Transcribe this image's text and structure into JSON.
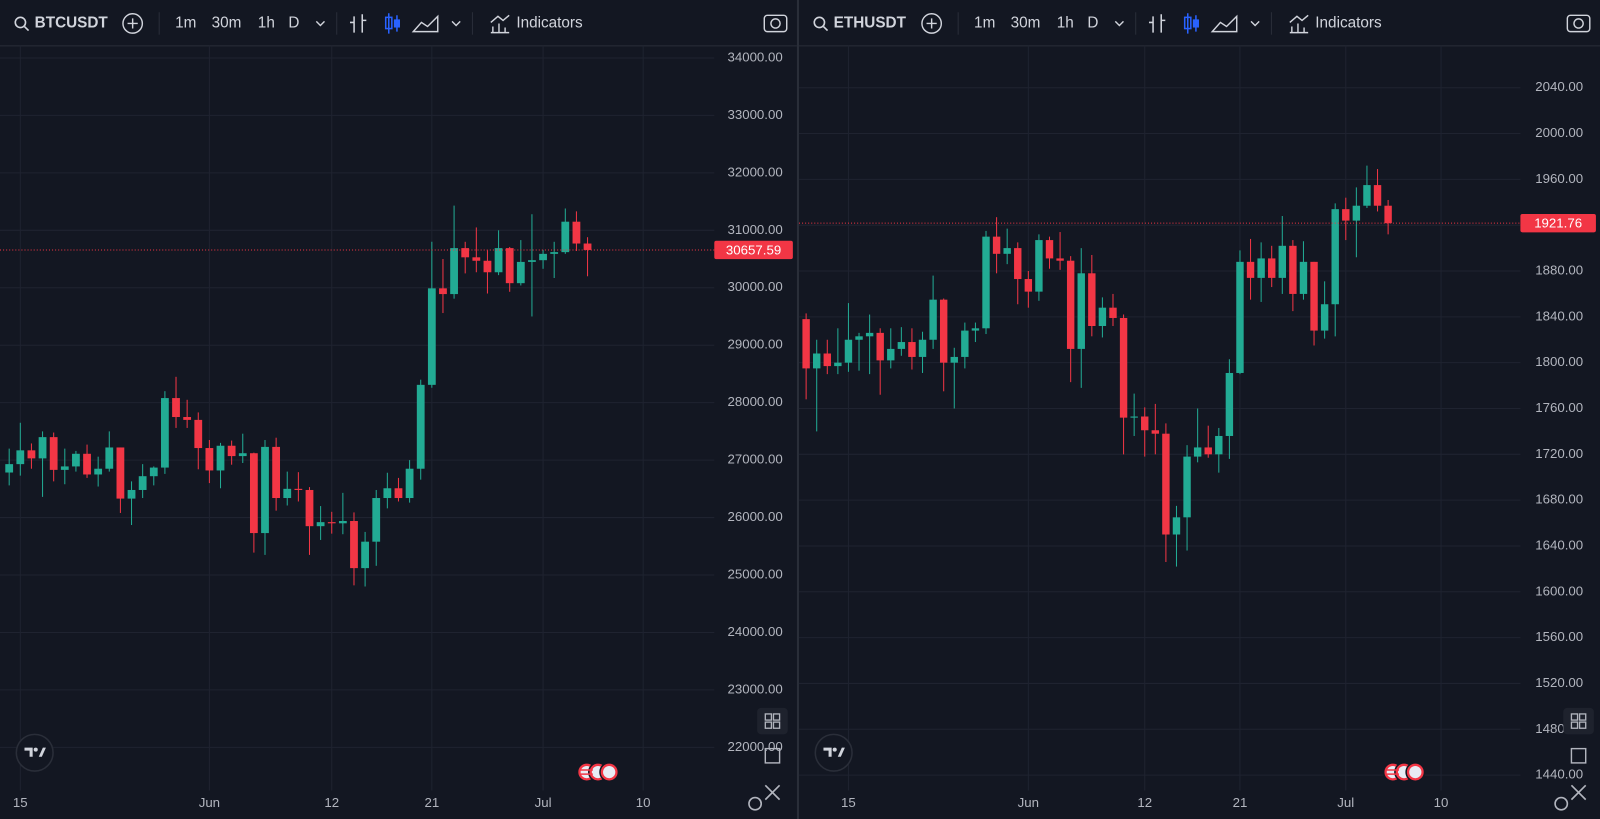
{
  "toolbar": {
    "intervals": [
      "1m",
      "30m",
      "1h",
      "D"
    ],
    "indicators": "Indicators"
  },
  "chart_data": [
    {
      "type": "candlestick",
      "title": "BTCUSDT",
      "up_color": "#22ab94",
      "down_color": "#f23645",
      "categories": [
        null,
        "15",
        null,
        null,
        null,
        null,
        null,
        null,
        null,
        null,
        null,
        null,
        null,
        null,
        null,
        null,
        null,
        null,
        "Jun",
        null,
        null,
        null,
        null,
        null,
        null,
        null,
        null,
        null,
        null,
        "12",
        null,
        null,
        null,
        null,
        null,
        null,
        null,
        null,
        "21",
        null,
        null,
        null,
        null,
        null,
        null,
        null,
        null,
        null,
        "Jul",
        null,
        null,
        null,
        null,
        null,
        null,
        null,
        null,
        "10"
      ],
      "open": [
        26784,
        26930,
        27170,
        27030,
        27400,
        26830,
        26890,
        27110,
        26750,
        26850,
        27220,
        26330,
        26480,
        26720,
        26870,
        28080,
        27750,
        27700,
        27210,
        26820,
        27250,
        27070,
        27120,
        25730,
        27230,
        26340,
        26500,
        26480,
        25850,
        25920,
        25900,
        25940,
        25120,
        25580,
        26340,
        26510,
        26340,
        26850,
        28310,
        29990,
        29890,
        30690,
        30530,
        30470,
        30270,
        30690,
        30080,
        30450,
        30480,
        30590,
        30620,
        31150,
        30770,
        null,
        null,
        null,
        null,
        null
      ],
      "high": [
        27200,
        27650,
        27290,
        27500,
        27480,
        27200,
        27160,
        27270,
        27060,
        27500,
        27220,
        26630,
        26930,
        26890,
        28200,
        28450,
        28050,
        27830,
        27350,
        27300,
        27340,
        27460,
        27130,
        27350,
        27390,
        26800,
        26790,
        26530,
        26200,
        26100,
        26430,
        26090,
        25750,
        26480,
        26780,
        26690,
        27000,
        28400,
        30800,
        30500,
        31430,
        30800,
        31050,
        30650,
        31000,
        30710,
        30830,
        31280,
        30660,
        30800,
        31380,
        31330,
        30880,
        null,
        null,
        null,
        null,
        null
      ],
      "low": [
        26560,
        26730,
        26850,
        26360,
        26630,
        26580,
        26800,
        26690,
        26540,
        26800,
        26080,
        25870,
        26340,
        26560,
        26760,
        27560,
        27560,
        26840,
        26600,
        26510,
        26920,
        26950,
        25390,
        25350,
        26120,
        26210,
        26280,
        25350,
        25610,
        25720,
        25710,
        24820,
        24800,
        25160,
        26160,
        26280,
        26260,
        26660,
        28260,
        29560,
        29810,
        30250,
        30270,
        29900,
        30220,
        29930,
        30040,
        29500,
        30330,
        30170,
        30590,
        30640,
        30200,
        null,
        null,
        null,
        null,
        null
      ],
      "close": [
        26930,
        27170,
        27030,
        27400,
        26830,
        26890,
        27110,
        26750,
        26850,
        27220,
        26330,
        26480,
        26720,
        26870,
        28080,
        27750,
        27700,
        27210,
        26820,
        27250,
        27070,
        27120,
        25730,
        27230,
        26340,
        26500,
        26480,
        25850,
        25920,
        25900,
        25940,
        25120,
        25580,
        26340,
        26510,
        26340,
        26850,
        28310,
        29990,
        29890,
        30690,
        30530,
        30470,
        30270,
        30690,
        30080,
        30450,
        30480,
        30590,
        30620,
        31150,
        30770,
        30657.59,
        null,
        null,
        null,
        null,
        null
      ],
      "last_price": 30657.59,
      "ylim": [
        21250,
        34210
      ],
      "yticks": [
        {
          "value": 22000,
          "label": "22000.00"
        },
        {
          "value": 23000,
          "label": "23000.00"
        },
        {
          "value": 24000,
          "label": "24000.00"
        },
        {
          "value": 25000,
          "label": "25000.00"
        },
        {
          "value": 26000,
          "label": "26000.00"
        },
        {
          "value": 27000,
          "label": "27000.00"
        },
        {
          "value": 28000,
          "label": "28000.00"
        },
        {
          "value": 29000,
          "label": "29000.00"
        },
        {
          "value": 30000,
          "label": "30000.00"
        },
        {
          "value": 31000,
          "label": "31000.00"
        },
        {
          "value": 32000,
          "label": "32000.00"
        },
        {
          "value": 33000,
          "label": "33000.00"
        },
        {
          "value": 34000,
          "label": "34000.00"
        }
      ],
      "grid": true
    },
    {
      "type": "candlestick",
      "title": "ETHUSDT",
      "up_color": "#22ab94",
      "down_color": "#f23645",
      "categories": [
        null,
        null,
        null,
        null,
        "15",
        null,
        null,
        null,
        null,
        null,
        null,
        null,
        null,
        null,
        null,
        null,
        null,
        null,
        null,
        null,
        null,
        "Jun",
        null,
        null,
        null,
        null,
        null,
        null,
        null,
        null,
        null,
        null,
        "12",
        null,
        null,
        null,
        null,
        null,
        null,
        null,
        null,
        "21",
        null,
        null,
        null,
        null,
        null,
        null,
        null,
        null,
        null,
        "Jul",
        null,
        null,
        null,
        null,
        null,
        null,
        null,
        null,
        "10"
      ],
      "open": [
        1838,
        1795,
        1808,
        1797,
        1800,
        1820,
        1823,
        1826,
        1802,
        1812,
        1818,
        1805,
        1820,
        1855,
        1800,
        1805,
        1828,
        1830,
        1910,
        1895,
        1900,
        1873,
        1862,
        1907,
        1891,
        1889,
        1812,
        1878,
        1832,
        1848,
        1839,
        1752,
        1753,
        1741,
        1738,
        1650,
        1665,
        1718,
        1726,
        1720,
        1736,
        1791,
        1888,
        1874,
        1891,
        1874,
        1902,
        1860,
        1888,
        1828,
        1851,
        1934,
        1924,
        1937,
        1955,
        1937,
        null,
        null,
        null,
        null,
        null
      ],
      "high": [
        1843,
        1820,
        1820,
        1830,
        1852,
        1826,
        1842,
        1830,
        1830,
        1831,
        1830,
        1827,
        1876,
        1856,
        1813,
        1835,
        1835,
        1915,
        1927,
        1917,
        1905,
        1880,
        1912,
        1910,
        1914,
        1893,
        1900,
        1894,
        1857,
        1860,
        1842,
        1773,
        1761,
        1764,
        1747,
        1675,
        1728,
        1760,
        1745,
        1743,
        1803,
        1898,
        1908,
        1905,
        1902,
        1928,
        1907,
        1906,
        1888,
        1871,
        1939,
        1944,
        1953,
        1972,
        1969,
        1942,
        null,
        null,
        null,
        null,
        null
      ],
      "low": [
        1768,
        1740,
        1790,
        1790,
        1792,
        1793,
        1790,
        1772,
        1795,
        1806,
        1794,
        1791,
        1812,
        1775,
        1760,
        1795,
        1818,
        1825,
        1878,
        1886,
        1851,
        1848,
        1854,
        1882,
        1881,
        1783,
        1778,
        1823,
        1822,
        1832,
        1720,
        1736,
        1718,
        1720,
        1626,
        1622,
        1636,
        1713,
        1717,
        1704,
        1716,
        1790,
        1855,
        1853,
        1866,
        1860,
        1845,
        1855,
        1815,
        1821,
        1823,
        1907,
        1892,
        1935,
        1932,
        1912,
        null,
        null,
        null,
        null,
        null
      ],
      "close": [
        1795,
        1808,
        1797,
        1800,
        1820,
        1823,
        1826,
        1802,
        1812,
        1818,
        1805,
        1820,
        1855,
        1800,
        1805,
        1828,
        1830,
        1910,
        1895,
        1900,
        1873,
        1862,
        1907,
        1891,
        1889,
        1812,
        1878,
        1832,
        1848,
        1839,
        1752,
        1753,
        1741,
        1738,
        1650,
        1665,
        1718,
        1726,
        1720,
        1736,
        1791,
        1888,
        1874,
        1891,
        1874,
        1902,
        1860,
        1888,
        1828,
        1851,
        1934,
        1924,
        1937,
        1955,
        1937,
        1921.76,
        null,
        null,
        null,
        null,
        null
      ],
      "last_price": 1921.76,
      "ylim": [
        1426.6,
        2076.5
      ],
      "yticks": [
        {
          "value": 1440,
          "label": "1440.00"
        },
        {
          "value": 1480,
          "label": "1480.00"
        },
        {
          "value": 1520,
          "label": "1520.00"
        },
        {
          "value": 1560,
          "label": "1560.00"
        },
        {
          "value": 1600,
          "label": "1600.00"
        },
        {
          "value": 1640,
          "label": "1640.00"
        },
        {
          "value": 1680,
          "label": "1680.00"
        },
        {
          "value": 1720,
          "label": "1720.00"
        },
        {
          "value": 1760,
          "label": "1760.00"
        },
        {
          "value": 1800,
          "label": "1800.00"
        },
        {
          "value": 1840,
          "label": "1840.00"
        },
        {
          "value": 1880,
          "label": "1880.00"
        },
        {
          "value": 1920,
          "label": "1920.00"
        },
        {
          "value": 1960,
          "label": "1960.00"
        },
        {
          "value": 2000,
          "label": "2000.00"
        },
        {
          "value": 2040,
          "label": "2040.00"
        }
      ],
      "grid": true
    }
  ]
}
